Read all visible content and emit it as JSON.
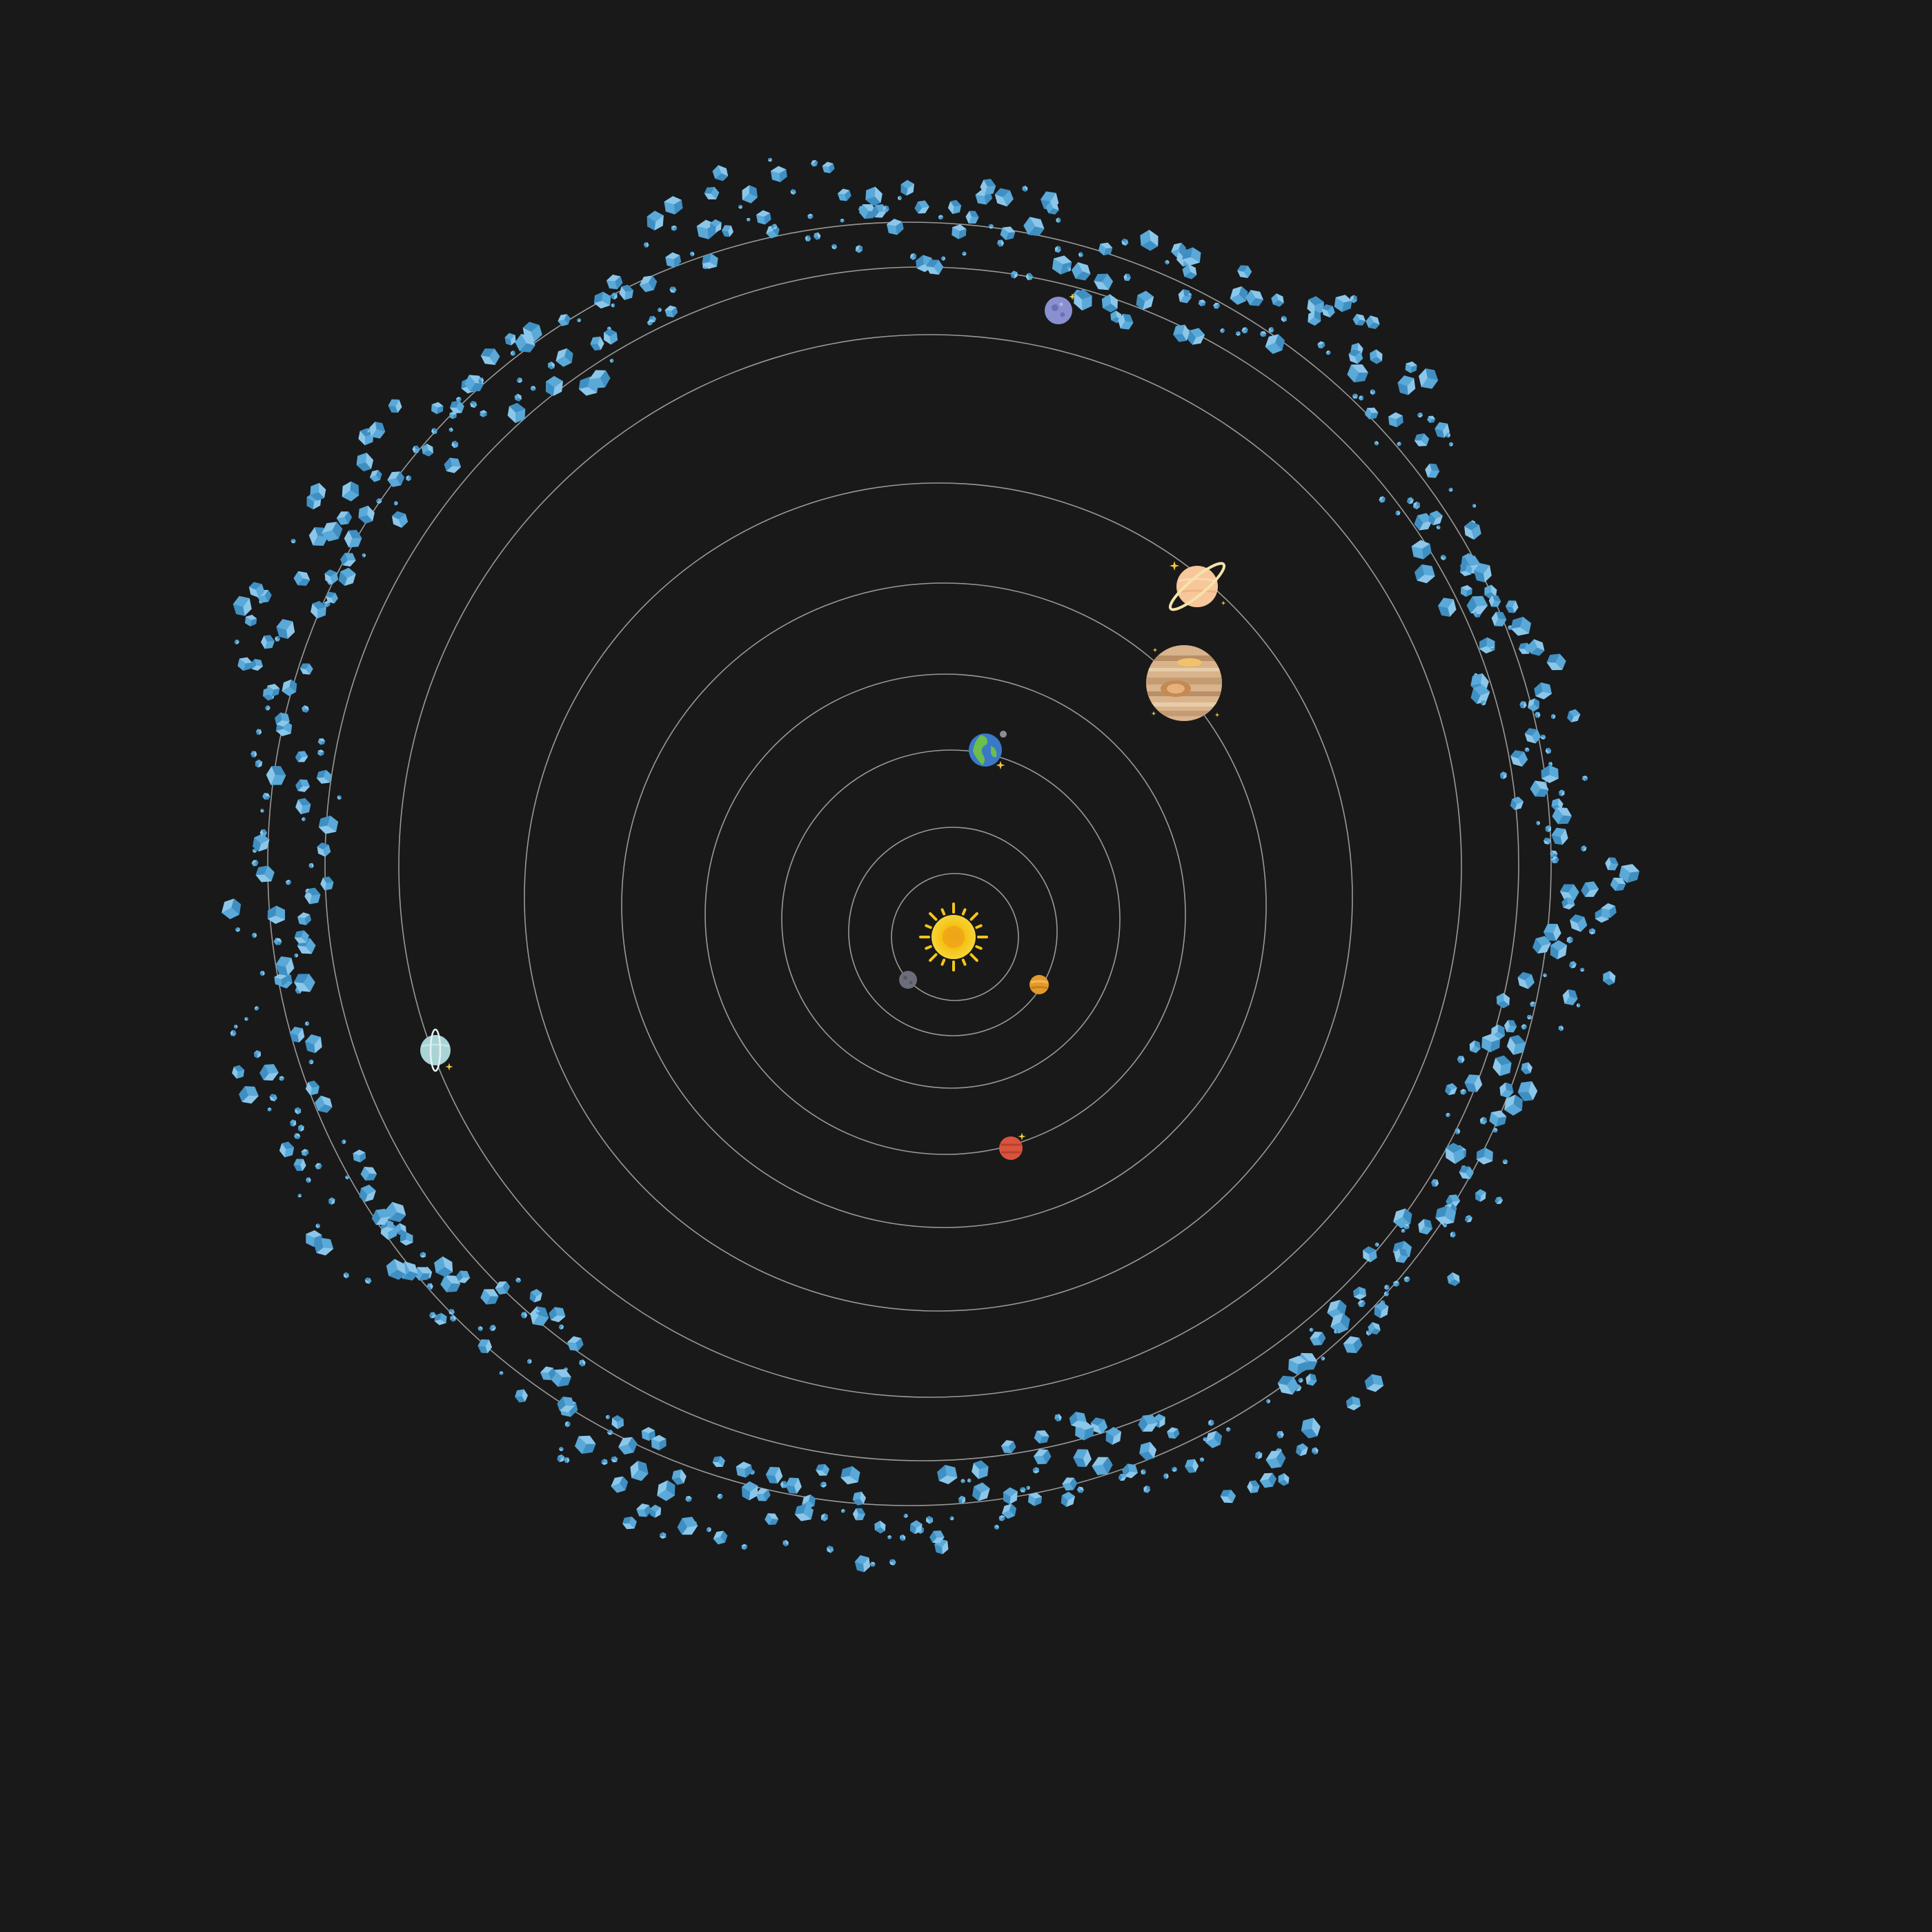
{
  "diagram": {
    "type": "solar-system-illustration",
    "colors": {
      "background": "#191919",
      "orbit_line": "#a7a7a7",
      "asteroid": "#5aa9d8",
      "asteroid_highlight": "#8cc7ea",
      "sparkle": "#f5c842"
    },
    "bodies": [
      {
        "id": "sun",
        "icon": "sun-icon",
        "color": "#f5c518"
      },
      {
        "id": "mercury",
        "icon": "mercury-icon",
        "color": "#6b6e78"
      },
      {
        "id": "venus",
        "icon": "venus-icon",
        "color": "#e39a2a"
      },
      {
        "id": "earth",
        "icon": "earth-icon",
        "color": "#3a78c8"
      },
      {
        "id": "mars",
        "icon": "mars-icon",
        "color": "#d9533e"
      },
      {
        "id": "jupiter",
        "icon": "jupiter-icon",
        "color": "#d9b38c"
      },
      {
        "id": "saturn",
        "icon": "saturn-icon",
        "color": "#f7c79b"
      },
      {
        "id": "uranus",
        "icon": "uranus-icon",
        "color": "#a9d4d6"
      },
      {
        "id": "neptune",
        "icon": "neptune-icon",
        "color": "#8a90cf"
      }
    ],
    "asteroid_belt": {
      "icon": "asteroid-icon"
    }
  }
}
